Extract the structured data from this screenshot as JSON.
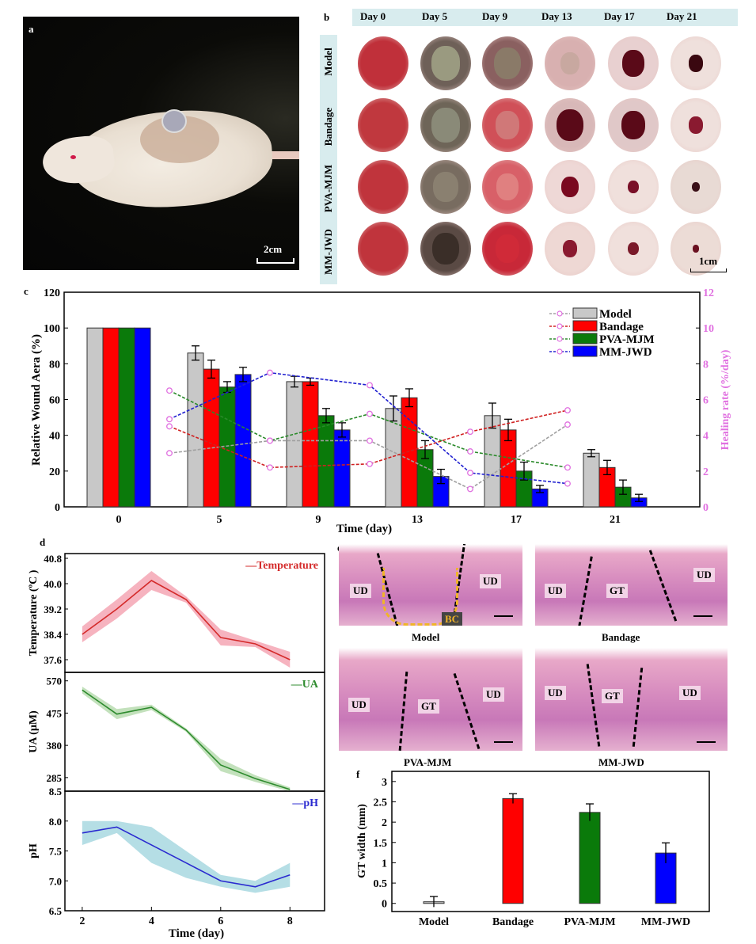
{
  "panels": {
    "a": {
      "letter": "a",
      "scale": "2cm"
    },
    "b": {
      "letter": "b",
      "days": [
        "Day 0",
        "Day 5",
        "Day 9",
        "Day 13",
        "Day 17",
        "Day 21"
      ],
      "groups": [
        "Model",
        "Bandage",
        "PVA-MJM",
        "MM-JWD"
      ],
      "scale": "1cm"
    },
    "c": {
      "letter": "c"
    },
    "d": {
      "letter": "d"
    },
    "e": {
      "letter": "e",
      "captions": [
        "Model",
        "Bandage",
        "PVA-MJM",
        "MM-JWD"
      ],
      "region_labels": {
        "ud": "UD",
        "gt": "GT",
        "bc": "BC"
      }
    },
    "f": {
      "letter": "f"
    }
  },
  "colors": {
    "model": "#c8c8c8",
    "bandage": "#ff0000",
    "pva_mjm": "#0a7a0a",
    "mm_jwd": "#0000ff",
    "healing_marker": "#e070e0",
    "temperature": "#d42a2a",
    "ua": "#2e8b2e",
    "ph": "#2a2ad0"
  },
  "chart_data": [
    {
      "id": "c",
      "type": "bar",
      "title": "",
      "xlabel": "Time (day)",
      "ylabel": "Relative Wound Aera (%)",
      "ylabel_right": "Healing rate (%/day)",
      "categories": [
        "0",
        "5",
        "9",
        "13",
        "17",
        "21"
      ],
      "ylim": [
        0,
        120
      ],
      "yticks": [
        0,
        20,
        40,
        60,
        80,
        100,
        120
      ],
      "ylim_right": [
        0,
        12
      ],
      "yticks_right": [
        0,
        2,
        4,
        6,
        8,
        10,
        12
      ],
      "legend_position": "top-right",
      "series": [
        {
          "name": "Model",
          "values": [
            100,
            86,
            70,
            55,
            51,
            30
          ],
          "errors": [
            0,
            4,
            3,
            7,
            7,
            2
          ]
        },
        {
          "name": "Bandage",
          "values": [
            100,
            77,
            70,
            61,
            43,
            22
          ],
          "errors": [
            0,
            5,
            2,
            5,
            6,
            4
          ]
        },
        {
          "name": "PVA-MJM",
          "values": [
            100,
            67,
            51,
            32,
            20,
            11
          ],
          "errors": [
            0,
            3,
            4,
            5,
            5,
            4
          ]
        },
        {
          "name": "MM-JWD",
          "values": [
            100,
            74,
            43,
            17,
            10,
            5
          ],
          "errors": [
            0,
            4,
            4,
            4,
            2,
            2
          ]
        }
      ],
      "healing_rate": {
        "x_positions": [
          "0-5",
          "5-9",
          "9-13",
          "13-17",
          "17-21"
        ],
        "series": [
          {
            "name": "Model",
            "values": [
              3.0,
              3.7,
              3.7,
              1.0,
              4.6
            ]
          },
          {
            "name": "Bandage",
            "values": [
              4.5,
              2.2,
              2.4,
              4.2,
              5.4
            ]
          },
          {
            "name": "PVA-MJM",
            "values": [
              6.5,
              3.7,
              5.2,
              3.1,
              2.2
            ]
          },
          {
            "name": "MM-JWD",
            "values": [
              4.9,
              7.5,
              6.8,
              1.9,
              1.3
            ]
          }
        ]
      }
    },
    {
      "id": "d",
      "type": "line",
      "xlabel": "Time (day)",
      "x": [
        2,
        3,
        4,
        5,
        6,
        7,
        8
      ],
      "xticks": [
        2,
        4,
        6,
        8
      ],
      "xlim": [
        1.5,
        9
      ],
      "subplots": [
        {
          "name": "Temperature",
          "ylabel": "Temperature (ºC )",
          "ylim": [
            37.2,
            40.95
          ],
          "yticks": [
            "37.6",
            "38.4",
            "39.2",
            "40.0",
            "40.8"
          ],
          "values": [
            38.4,
            39.2,
            40.1,
            39.5,
            38.3,
            38.1,
            37.6
          ],
          "band": [
            0.25,
            0.3,
            0.3,
            0.1,
            0.25,
            0.1,
            0.25
          ]
        },
        {
          "name": "UA",
          "ylabel": "UA (µM)",
          "ylim": [
            245,
            595
          ],
          "yticks": [
            "285",
            "380",
            "475",
            "570"
          ],
          "values": [
            543,
            472,
            492,
            425,
            322,
            282,
            250
          ],
          "band": [
            10,
            15,
            8,
            5,
            18,
            10,
            6
          ]
        },
        {
          "name": "pH",
          "ylabel": "pH",
          "ylim": [
            6.5,
            8.5
          ],
          "yticks": [
            "6.5",
            "7.0",
            "7.5",
            "8.0",
            "8.5"
          ],
          "values": [
            7.8,
            7.9,
            7.6,
            7.3,
            7.0,
            6.9,
            7.1
          ],
          "band_low": [
            7.6,
            7.8,
            7.3,
            7.05,
            6.9,
            6.8,
            6.9
          ],
          "band_high": [
            8.0,
            8.0,
            7.9,
            7.5,
            7.1,
            7.0,
            7.3
          ]
        }
      ]
    },
    {
      "id": "f",
      "type": "bar",
      "ylabel": "GT width (mm)",
      "xlabel": "",
      "categories": [
        "Model",
        "Bandage",
        "PVA-MJM",
        "MM-JWD"
      ],
      "values": [
        0.04,
        2.58,
        2.24,
        1.24
      ],
      "errors": [
        0.13,
        0.12,
        0.21,
        0.25
      ],
      "ylim": [
        -0.2,
        3.25
      ],
      "yticks": [
        "0",
        "0.5",
        "1",
        "1.5",
        "2",
        "2.5",
        "3"
      ]
    }
  ]
}
